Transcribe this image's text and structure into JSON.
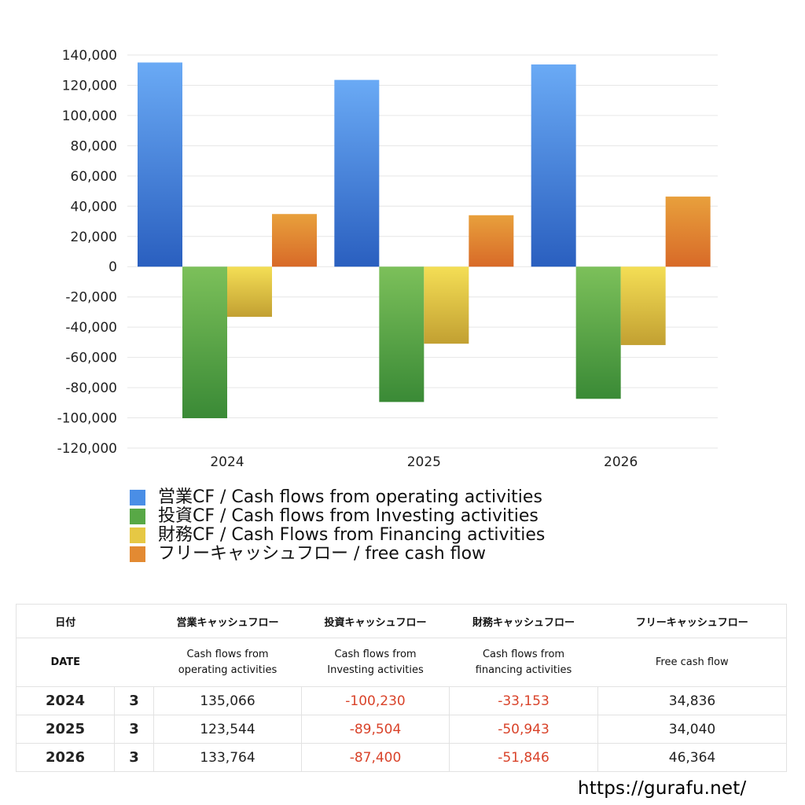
{
  "chart_data": {
    "type": "bar",
    "categories": [
      "2024",
      "2025",
      "2026"
    ],
    "series": [
      {
        "name": "営業CF / Cash flows from operating activities",
        "values": [
          135066,
          123544,
          133764
        ]
      },
      {
        "name": "投資CF / Cash flows from Investing activities",
        "values": [
          -100230,
          -89504,
          -87400
        ]
      },
      {
        "name": "財務CF / Cash Flows from Financing activities",
        "values": [
          -33153,
          -50943,
          -51846
        ]
      },
      {
        "name": "フリーキャッシュフロー / free cash flow",
        "values": [
          34836,
          34040,
          46364
        ]
      }
    ],
    "colors": [
      {
        "top": "#6aaaf5",
        "bottom": "#2a5fbf"
      },
      {
        "top": "#7cc05a",
        "bottom": "#3a8a36"
      },
      {
        "top": "#f4de55",
        "bottom": "#c2a032"
      },
      {
        "top": "#e8a03c",
        "bottom": "#d86a28"
      }
    ],
    "ylim": [
      -120000,
      140000
    ],
    "yticks": [
      140000,
      120000,
      100000,
      80000,
      60000,
      40000,
      20000,
      0,
      -20000,
      -40000,
      -60000,
      -80000,
      -100000,
      -120000
    ],
    "ytick_labels": [
      "140,000",
      "120,000",
      "100,000",
      "80,000",
      "60,000",
      "40,000",
      "20,000",
      "0",
      "-20,000",
      "-40,000",
      "-60,000",
      "-80,000",
      "-100,000",
      "-120,000"
    ],
    "grid": true,
    "legend_position": "bottom",
    "xlabel": "",
    "ylabel": "",
    "title": ""
  },
  "legend": {
    "items": [
      {
        "label": "営業CF / Cash flows from operating activities",
        "color": "#4a8ee6"
      },
      {
        "label": "投資CF / Cash flows from Investing activities",
        "color": "#58a846"
      },
      {
        "label": "財務CF / Cash Flows from Financing activities",
        "color": "#e6c844"
      },
      {
        "label": "フリーキャッシュフロー / free cash flow",
        "color": "#e38a32"
      }
    ]
  },
  "table": {
    "headers": {
      "date": "日付",
      "operating": "営業キャッシュフロー",
      "investing": "投資キャッシュフロー",
      "financing": "財務キャッシュフロー",
      "free": "フリーキャッシュフロー"
    },
    "subheaders": {
      "date": "DATE",
      "operating_l1": "Cash flows from",
      "operating_l2": "operating activities",
      "investing_l1": "Cash flows from",
      "investing_l2": "Investing activities",
      "financing_l1": "Cash flows from",
      "financing_l2": "financing activities",
      "free": "Free cash flow"
    },
    "rows": [
      {
        "year": "2024",
        "month": "3",
        "operating": "135,066",
        "investing": "-100,230",
        "financing": "-33,153",
        "free": "34,836"
      },
      {
        "year": "2025",
        "month": "3",
        "operating": "123,544",
        "investing": "-89,504",
        "financing": "-50,943",
        "free": "34,040"
      },
      {
        "year": "2026",
        "month": "3",
        "operating": "133,764",
        "investing": "-87,400",
        "financing": "-51,846",
        "free": "46,364"
      }
    ]
  },
  "footer": {
    "url": "https://gurafu.net/"
  }
}
